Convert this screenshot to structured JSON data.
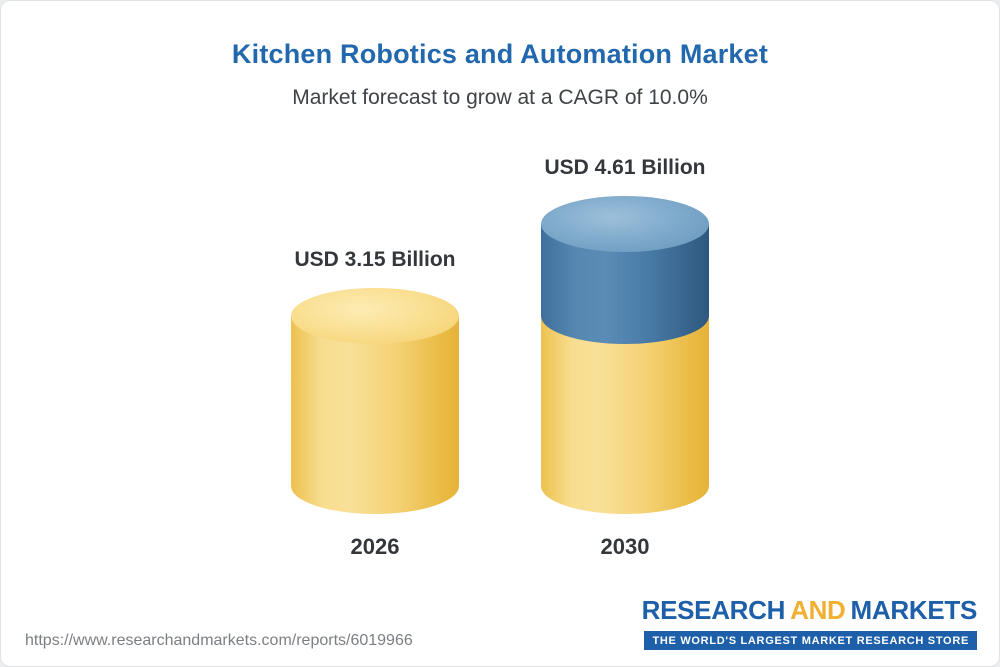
{
  "card": {
    "title": "Kitchen Robotics and Automation Market",
    "subtitle": "Market forecast to grow at a CAGR of 10.0%"
  },
  "chart_data": {
    "type": "bar",
    "title": "Kitchen Robotics and Automation Market",
    "subtitle": "Market forecast to grow at a CAGR of 10.0%",
    "categories": [
      "2026",
      "2030"
    ],
    "values": [
      3.15,
      4.61
    ],
    "value_labels": [
      "USD 3.15 Billion",
      "USD 4.61 Billion"
    ],
    "units": "USD Billion",
    "cagr": "10.0%",
    "ylim": [
      0,
      5
    ],
    "colors": {
      "base": "#F5CE62",
      "growth": "#3D72A0"
    },
    "style": "3d-cylinder",
    "legend": "none",
    "grid": "off"
  },
  "footer": {
    "url": "https://www.researchandmarkets.com/reports/6019966",
    "logo": {
      "research": "RESEARCH",
      "and": "AND",
      "markets": "MARKETS",
      "tagline": "THE WORLD'S LARGEST MARKET RESEARCH STORE"
    }
  }
}
